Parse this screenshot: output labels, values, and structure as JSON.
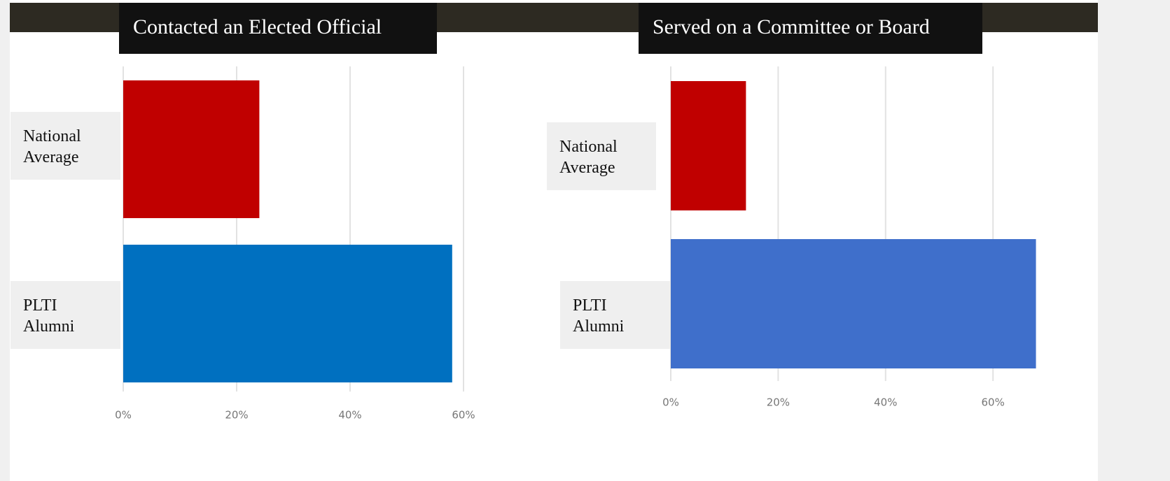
{
  "chart_data": [
    {
      "type": "bar",
      "orientation": "horizontal",
      "title": "Contacted an Elected Official",
      "categories": [
        "National Average",
        "PLTI Alumni"
      ],
      "values": [
        24,
        58
      ],
      "colors": [
        "#c00000",
        "#0070c0"
      ],
      "xlim": [
        0,
        60
      ],
      "xticks": [
        {
          "value": 0,
          "label": "0%"
        },
        {
          "value": 20,
          "label": "20%"
        },
        {
          "value": 40,
          "label": "40%"
        },
        {
          "value": 60,
          "label": "60%"
        }
      ],
      "grid": true
    },
    {
      "type": "bar",
      "orientation": "horizontal",
      "title": "Served on a Committee or Board",
      "categories": [
        "National Average",
        "PLTI Alumni"
      ],
      "values": [
        14,
        68
      ],
      "colors": [
        "#c00000",
        "#3f6fcb"
      ],
      "xlim": [
        0,
        70
      ],
      "xticks": [
        {
          "value": 0,
          "label": "0%"
        },
        {
          "value": 20,
          "label": "20%"
        },
        {
          "value": 40,
          "label": "40%"
        },
        {
          "value": 60,
          "label": "60%"
        }
      ],
      "grid": true
    }
  ]
}
